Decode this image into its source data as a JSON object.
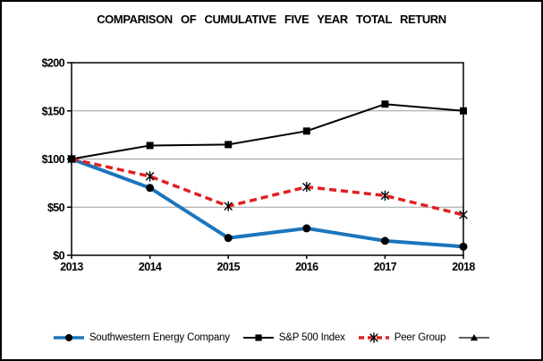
{
  "window": {
    "background": "#ffffff",
    "border_color": "#000000"
  },
  "chart_data": {
    "type": "line",
    "title": "COMPARISON OF CUMULATIVE FIVE YEAR TOTAL RETURN",
    "x": [
      2013,
      2014,
      2015,
      2016,
      2017,
      2018
    ],
    "x_tick_labels": [
      "2013",
      "2014",
      "2015",
      "2016",
      "2017",
      "2018"
    ],
    "y_ticks": [
      0,
      50,
      100,
      150,
      200
    ],
    "y_tick_labels": [
      "$0",
      "$50",
      "$100",
      "$150",
      "$200"
    ],
    "ylim": [
      0,
      200
    ],
    "grid": "horizontal",
    "gridline_color": "#9d9d9d",
    "axis_color": "#000000",
    "legend_position": "bottom",
    "series": [
      {
        "name": "Southwestern Energy Company",
        "color": "#1c75bc",
        "line_style": "solid",
        "line_width": 4,
        "marker": "circle",
        "marker_color": "#000000",
        "values": [
          100,
          70,
          18,
          28,
          15,
          9
        ]
      },
      {
        "name": "S&P 500 Index",
        "color": "#000000",
        "line_style": "solid",
        "line_width": 2,
        "marker": "square",
        "marker_color": "#000000",
        "values": [
          100,
          114,
          115,
          129,
          157,
          150
        ]
      },
      {
        "name": "Peer Group",
        "color": "#e02020",
        "line_style": "dashed",
        "line_width": 3.5,
        "marker": "asterisk",
        "marker_color": "#000000",
        "values": [
          100,
          82,
          51,
          71,
          62,
          42
        ]
      },
      {
        "name": "",
        "color": "#000000",
        "line_style": "solid",
        "line_width": 1.2,
        "marker": "triangle",
        "marker_color": "#000000",
        "values": []
      }
    ]
  }
}
